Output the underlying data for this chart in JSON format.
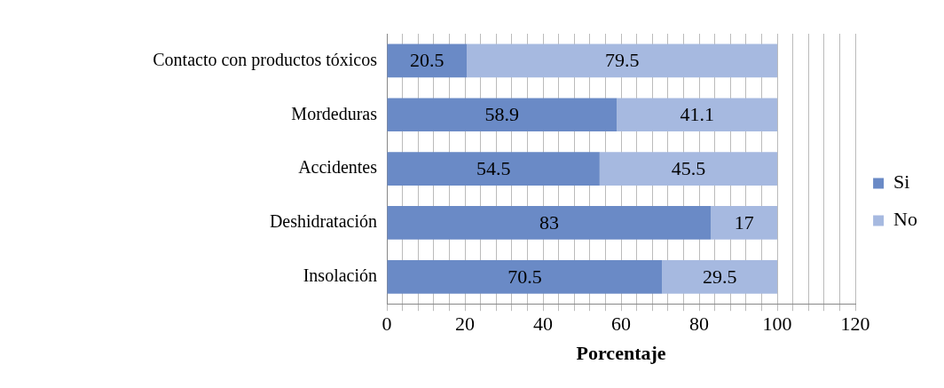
{
  "chart_data": {
    "type": "bar",
    "orientation": "horizontal",
    "stacked": true,
    "xlabel": "Porcentaje",
    "categories": [
      "Contacto con productos tóxicos",
      "Mordeduras",
      "Accidentes",
      "Deshidratación",
      "Insolación"
    ],
    "series": [
      {
        "name": "Si",
        "color": "#6a8ac6",
        "values": [
          20.5,
          58.9,
          54.5,
          83,
          70.5
        ]
      },
      {
        "name": "No",
        "color": "#a6b9e0",
        "values": [
          79.5,
          41.1,
          45.5,
          17,
          29.5
        ]
      }
    ],
    "xlim": [
      0,
      120
    ],
    "xticks": [
      0,
      {
        "value": 4,
        "label": null
      },
      {
        "value": 8,
        "label": null
      },
      {
        "value": 12,
        "label": null
      },
      {
        "value": 16,
        "label": null
      },
      20,
      {
        "value": 24,
        "label": null
      },
      {
        "value": 28,
        "label": null
      },
      {
        "value": 32,
        "label": null
      },
      {
        "value": 36,
        "label": null
      },
      40,
      {
        "value": 44,
        "label": null
      },
      {
        "value": 48,
        "label": null
      },
      {
        "value": 52,
        "label": null
      },
      {
        "value": 56,
        "label": null
      },
      60,
      {
        "value": 64,
        "label": null
      },
      {
        "value": 68,
        "label": null
      },
      {
        "value": 72,
        "label": null
      },
      {
        "value": 76,
        "label": null
      },
      80,
      {
        "value": 84,
        "label": null
      },
      {
        "value": 88,
        "label": null
      },
      {
        "value": 92,
        "label": null
      },
      {
        "value": 96,
        "label": null
      },
      100,
      {
        "value": 104,
        "label": null
      },
      {
        "value": 108,
        "label": null
      },
      {
        "value": 112,
        "label": null
      },
      {
        "value": 116,
        "label": null
      },
      120
    ],
    "grid": "x",
    "legend": "right",
    "data_labels": true
  }
}
